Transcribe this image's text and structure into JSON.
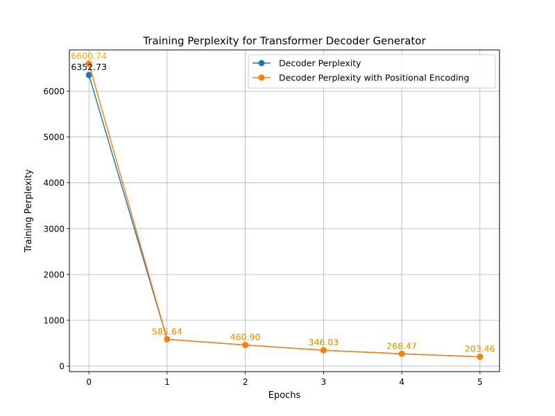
{
  "chart_data": {
    "type": "line",
    "title": "Training Perplexity for Transformer Decoder Generator",
    "xlabel": "Epochs",
    "ylabel": "Training Perplexity",
    "x": [
      0,
      1,
      2,
      3,
      4,
      5
    ],
    "xticks": [
      "0",
      "1",
      "2",
      "3",
      "4",
      "5"
    ],
    "yticks": [
      "0",
      "1000",
      "2000",
      "3000",
      "4000",
      "5000",
      "6000"
    ],
    "xlim": [
      -0.25,
      5.25
    ],
    "ylim": [
      -120,
      6900
    ],
    "grid": true,
    "legend_position": "top-right",
    "series": [
      {
        "name": "Decoder Perplexity",
        "color": "#1f77b4",
        "label_color": "#000000",
        "marker": "circle",
        "values": [
          6352.73,
          585.64,
          460.9,
          346.03,
          268.47,
          203.46
        ],
        "labels": [
          "6352.73",
          "585.64",
          "460.90",
          "346.03",
          "268.47",
          "203.46"
        ]
      },
      {
        "name": "Decoder Perplexity with Positional Encoding",
        "color": "#ff7f0e",
        "label_color": "#ffa500",
        "marker": "circle",
        "values": [
          6600.74,
          585.64,
          460.9,
          346.03,
          268.47,
          203.46
        ],
        "labels": [
          "6600.74",
          "585.64",
          "460.90",
          "346.03",
          "268.47",
          "203.46"
        ]
      }
    ]
  }
}
